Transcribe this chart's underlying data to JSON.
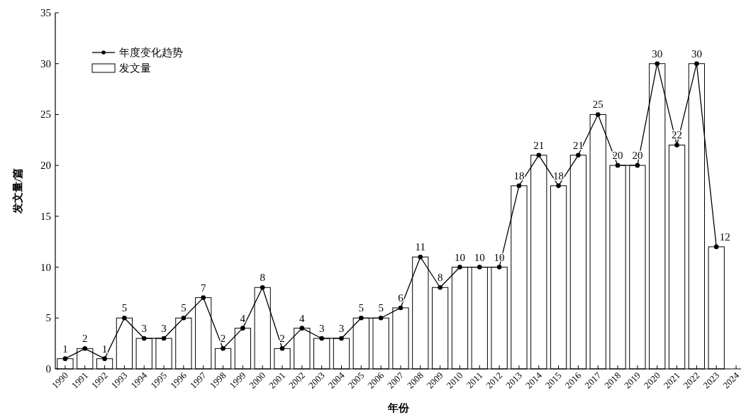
{
  "chart_data": {
    "type": "bar",
    "xlabel": "年份",
    "ylabel": "发文量/篇",
    "categories": [
      "1990",
      "1991",
      "1992",
      "1993",
      "1994",
      "1995",
      "1996",
      "1997",
      "1998",
      "1999",
      "2000",
      "2001",
      "2002",
      "2003",
      "2004",
      "2005",
      "2006",
      "2007",
      "2008",
      "2009",
      "2010",
      "2011",
      "2012",
      "2013",
      "2014",
      "2015",
      "2016",
      "2017",
      "2018",
      "2019",
      "2020",
      "2021",
      "2022",
      "2023",
      "2024"
    ],
    "series": [
      {
        "name": "年度变化趋势",
        "type": "line",
        "color": "#000000",
        "values": [
          1,
          2,
          1,
          5,
          3,
          3,
          5,
          7,
          2,
          4,
          8,
          2,
          4,
          3,
          3,
          5,
          5,
          6,
          11,
          8,
          10,
          10,
          10,
          18,
          21,
          18,
          21,
          25,
          20,
          20,
          30,
          22,
          30,
          12,
          null
        ],
        "value_labels": [
          "1",
          "2",
          "1",
          "5",
          "3",
          "3",
          "5",
          "7",
          "2",
          "4",
          "8",
          "2",
          "4",
          "3",
          "3",
          "5",
          "5",
          "6",
          "11",
          "8",
          "10",
          "10",
          "10",
          "18",
          "21",
          "18",
          "21",
          "25",
          "20",
          "20",
          "30",
          "22",
          "30",
          "12",
          null
        ]
      },
      {
        "name": "发文量",
        "color": "#ffffff",
        "values": [
          1,
          2,
          1,
          5,
          3,
          3,
          5,
          7,
          2,
          4,
          8,
          2,
          4,
          3,
          3,
          5,
          5,
          6,
          11,
          8,
          10,
          10,
          10,
          18,
          21,
          18,
          21,
          25,
          20,
          20,
          30,
          22,
          30,
          12,
          null
        ]
      }
    ],
    "ylim": [
      0,
      35
    ],
    "yticks": [
      0,
      5,
      10,
      15,
      20,
      25,
      30,
      35
    ],
    "grid": false,
    "legend": "top left",
    "marker": "circle",
    "line_style": "solid"
  }
}
